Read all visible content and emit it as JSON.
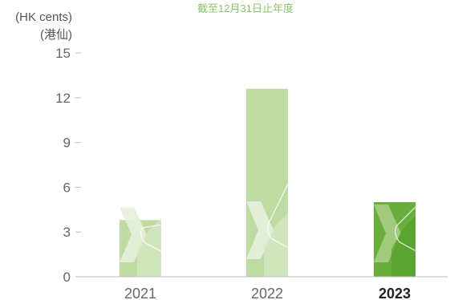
{
  "colors": {
    "subtitle": "#8cc46a",
    "axis": "#bdbdbd",
    "tick_text": "#666666",
    "bar_default": "#c0daa4",
    "bar_default_light": "#d7e8c4",
    "bar_default_pale": "#e6f0da",
    "bar_highlight": "#6aad3d",
    "bar_highlight_dark": "#57a12e",
    "bar_highlight_light": "#a9cd83"
  },
  "chart_data": {
    "type": "bar",
    "title": "",
    "subtitle": "截至12月31日止年度",
    "ylabel_line1": "(HK cents)",
    "ylabel_line2": "(港仙)",
    "xlabel": "",
    "ylim": [
      0,
      15
    ],
    "yticks": [
      0,
      3,
      6,
      9,
      12,
      15
    ],
    "grid": false,
    "categories": [
      "2021",
      "2022",
      "2023"
    ],
    "values": [
      3.8,
      12.6,
      5.0
    ],
    "highlight_index": 2
  }
}
